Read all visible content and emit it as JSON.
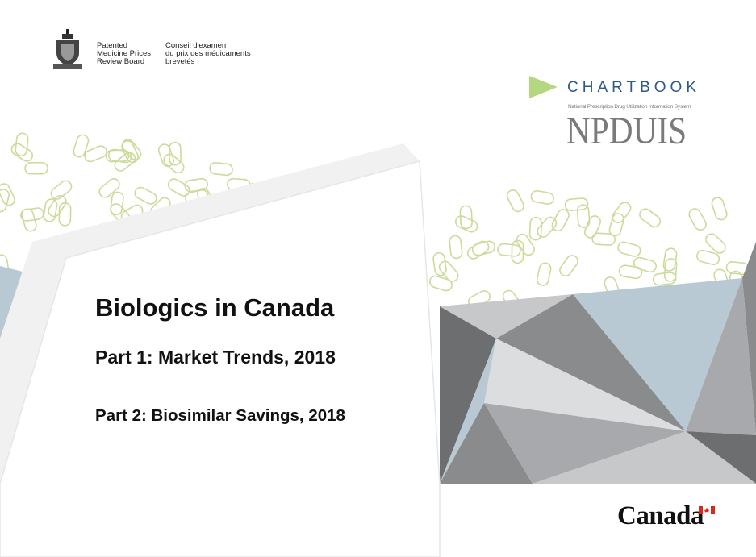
{
  "header": {
    "org_en": "Patented\nMedicine Prices\nReview Board",
    "org_fr": "Conseil d'examen\ndu prix des médicaments\nbrevetés",
    "crest_icon": "coat-of-arms-icon"
  },
  "branding": {
    "chartbook": "CHARTBOOK",
    "npduis_full": "National Prescription Drug Utilization Information System",
    "npduis": "NPDUIS",
    "arrow_color": "#b5d77f"
  },
  "cover": {
    "title": "Biologics in Canada",
    "part1": "Part 1: Market Trends, 2018",
    "part2": "Part 2: Biosimilar Savings, 2018"
  },
  "footer": {
    "wordmark": "Canada"
  },
  "colors": {
    "pill_outline": "#c9dc9a",
    "triangles": [
      "#6d6e70",
      "#8a8b8d",
      "#a7a9ac",
      "#c7c8ca",
      "#b9c9d4",
      "#dcdddf"
    ]
  }
}
